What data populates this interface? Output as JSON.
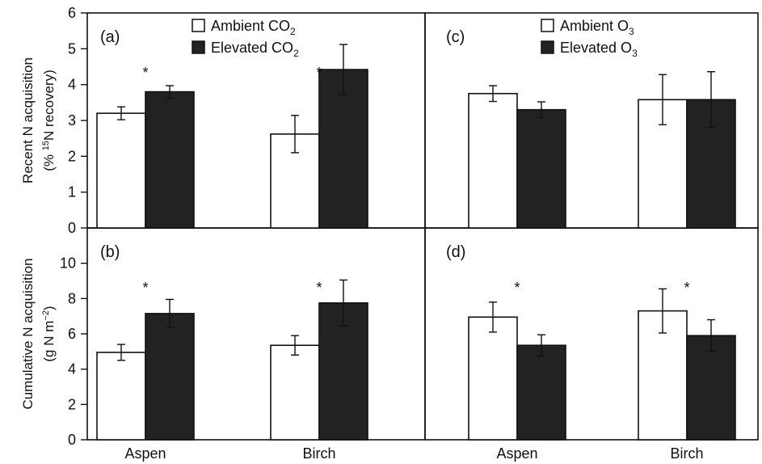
{
  "chart_data": [
    {
      "type": "bar",
      "panel": "(a)",
      "categories": [
        "Aspen",
        "Birch"
      ],
      "series": [
        {
          "name": "Ambient CO2",
          "values": [
            3.2,
            2.62
          ],
          "errors": [
            0.18,
            0.52
          ],
          "color": "#ffffff"
        },
        {
          "name": "Elevated CO2",
          "values": [
            3.8,
            4.42
          ],
          "errors": [
            0.17,
            0.7
          ],
          "color": "#222222"
        }
      ],
      "significant": [
        true,
        true
      ],
      "ylabel": "Recent N acquisition",
      "ylabel_sub": "(% 15N recovery)",
      "ylim": [
        0,
        6
      ],
      "yticks": [
        0,
        1,
        2,
        3,
        4,
        5,
        6
      ],
      "legend": {
        "items": [
          "Ambient CO",
          "Elevated CO"
        ],
        "subscripts": [
          "2",
          "2"
        ],
        "position": "top-center"
      }
    },
    {
      "type": "bar",
      "panel": "(b)",
      "categories": [
        "Aspen",
        "Birch"
      ],
      "series": [
        {
          "name": "Ambient CO2",
          "values": [
            4.95,
            5.35
          ],
          "errors": [
            0.45,
            0.55
          ],
          "color": "#ffffff"
        },
        {
          "name": "Elevated CO2",
          "values": [
            7.15,
            7.75
          ],
          "errors": [
            0.8,
            1.3
          ],
          "color": "#222222"
        }
      ],
      "significant": [
        true,
        true
      ],
      "ylabel": "Cumulative N acquisition",
      "ylabel_sub": "(g N m−2)",
      "ylim": [
        0,
        12
      ],
      "yticks": [
        0,
        2,
        4,
        6,
        8,
        10
      ],
      "xlabels": [
        "Aspen",
        "Birch"
      ]
    },
    {
      "type": "bar",
      "panel": "(c)",
      "categories": [
        "Aspen",
        "Birch"
      ],
      "series": [
        {
          "name": "Ambient O3",
          "values": [
            3.75,
            3.58
          ],
          "errors": [
            0.22,
            0.7
          ],
          "color": "#ffffff"
        },
        {
          "name": "Elevated O3",
          "values": [
            3.3,
            3.58
          ],
          "errors": [
            0.22,
            0.78
          ],
          "color": "#222222"
        }
      ],
      "significant": [
        false,
        false
      ],
      "ylim": [
        0,
        6
      ],
      "legend": {
        "items": [
          "Ambient O",
          "Elevated O"
        ],
        "subscripts": [
          "3",
          "3"
        ],
        "position": "top-center"
      }
    },
    {
      "type": "bar",
      "panel": "(d)",
      "categories": [
        "Aspen",
        "Birch"
      ],
      "series": [
        {
          "name": "Ambient O3",
          "values": [
            6.95,
            7.3
          ],
          "errors": [
            0.85,
            1.25
          ],
          "color": "#ffffff"
        },
        {
          "name": "Elevated O3",
          "values": [
            5.35,
            5.9
          ],
          "errors": [
            0.6,
            0.9
          ],
          "color": "#222222"
        }
      ],
      "significant": [
        true,
        true
      ],
      "ylim": [
        0,
        12
      ],
      "xlabels": [
        "Aspen",
        "Birch"
      ]
    }
  ],
  "labels": {
    "ylabel_top": "Recent N acquisition",
    "ylabel_top_sub_prefix": "(% ",
    "ylabel_top_sub_sup": "15",
    "ylabel_top_sub_suffix": "N recovery)",
    "ylabel_bottom": "Cumulative N acquisition",
    "ylabel_bottom_sub_prefix": "(g N m",
    "ylabel_bottom_sub_sup": "−2",
    "ylabel_bottom_sub_suffix": ")",
    "star": "*"
  }
}
